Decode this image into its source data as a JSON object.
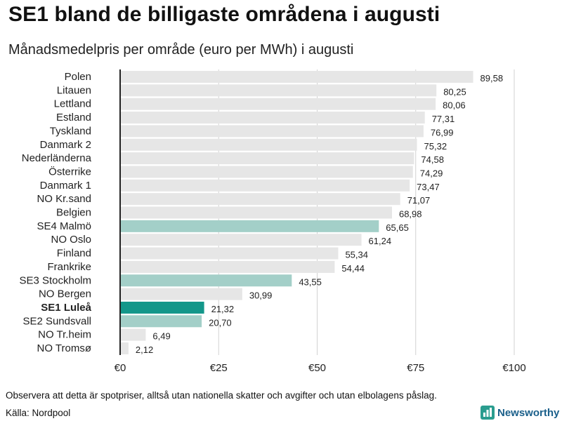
{
  "title": "SE1 bland de billigaste områdena i augusti",
  "subtitle": "Månadsmedelpris per område (euro per MWh) i augusti",
  "footnote": "Observera att detta är spotpriser, alltså utan nationella skatter och avgifter och utan elbolagens påslag.",
  "source": "Källa: Nordpool",
  "brand": {
    "name": "Newsworthy",
    "icon": "newsworthy-logo-icon"
  },
  "colors": {
    "default": "#e6e6e6",
    "highlight": "#a3cfc8",
    "selected": "#13978a",
    "grid": "#d2d2d2",
    "axis": "#222222"
  },
  "chart_data": {
    "type": "bar",
    "orientation": "horizontal",
    "title": "SE1 bland de billigaste områdena i augusti",
    "subtitle": "Månadsmedelpris per område (euro per MWh) i augusti",
    "xlabel": "",
    "ylabel": "",
    "xlim": [
      0,
      100
    ],
    "grid": true,
    "x_ticks": [
      {
        "value": 0,
        "label": "€0"
      },
      {
        "value": 25,
        "label": "€25"
      },
      {
        "value": 50,
        "label": "€50"
      },
      {
        "value": 75,
        "label": "€75"
      },
      {
        "value": 100,
        "label": "€100"
      }
    ],
    "categories": [
      "Polen",
      "Litauen",
      "Lettland",
      "Estland",
      "Tyskland",
      "Danmark 2",
      "Nederländerna",
      "Österrike",
      "Danmark 1",
      "NO Kr.sand",
      "Belgien",
      "SE4 Malmö",
      "NO Oslo",
      "Finland",
      "Frankrike",
      "SE3 Stockholm",
      "NO Bergen",
      "SE1 Luleå",
      "SE2 Sundsvall",
      "NO Tr.heim",
      "NO Tromsø"
    ],
    "values": [
      89.58,
      80.25,
      80.06,
      77.31,
      76.99,
      75.32,
      74.58,
      74.29,
      73.47,
      71.07,
      68.98,
      65.65,
      61.24,
      55.34,
      54.44,
      43.55,
      30.99,
      21.32,
      20.7,
      6.49,
      2.12
    ],
    "value_labels": [
      "89,58",
      "80,25",
      "80,06",
      "77,31",
      "76,99",
      "75,32",
      "74,58",
      "74,29",
      "73,47",
      "71,07",
      "68,98",
      "65,65",
      "61,24",
      "55,34",
      "54,44",
      "43,55",
      "30,99",
      "21,32",
      "20,70",
      "6,49",
      "2,12"
    ],
    "bar_style": [
      "default",
      "default",
      "default",
      "default",
      "default",
      "default",
      "default",
      "default",
      "default",
      "default",
      "default",
      "highlight",
      "default",
      "default",
      "default",
      "highlight",
      "default",
      "selected",
      "highlight",
      "default",
      "default"
    ],
    "bold_categories": [
      "SE1 Luleå"
    ]
  }
}
